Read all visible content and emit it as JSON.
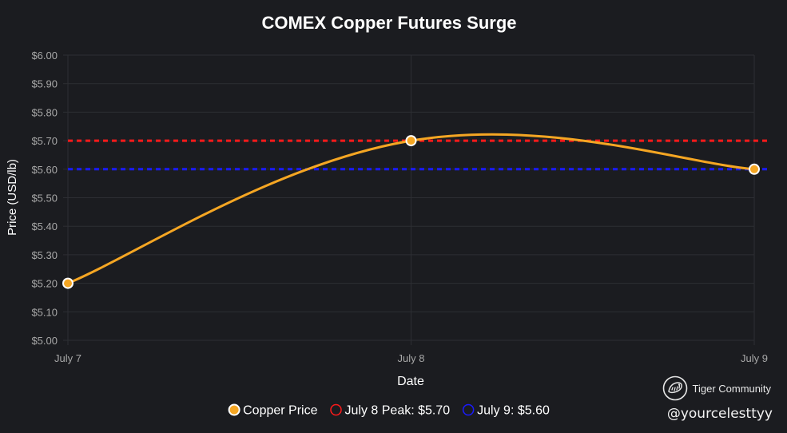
{
  "chart_data": {
    "type": "line",
    "title": "COMEX Copper Futures Surge",
    "xlabel": "Date",
    "ylabel": "Price (USD/lb)",
    "categories": [
      "July 7",
      "July 8",
      "July 9"
    ],
    "series": [
      {
        "name": "Copper Price",
        "values": [
          5.2,
          5.7,
          5.6
        ],
        "color": "#f5a623"
      }
    ],
    "reference_lines": [
      {
        "name": "July 8 Peak: $5.70",
        "value": 5.7,
        "color": "#ff1a1a"
      },
      {
        "name": "July 9: $5.60",
        "value": 5.6,
        "color": "#1a1aff"
      }
    ],
    "ylim": [
      5.0,
      6.0
    ],
    "yticks": [
      5.0,
      5.1,
      5.2,
      5.3,
      5.4,
      5.5,
      5.6,
      5.7,
      5.8,
      5.9,
      6.0
    ],
    "ytick_labels": [
      "$5.00",
      "$5.10",
      "$5.20",
      "$5.30",
      "$5.40",
      "$5.50",
      "$5.60",
      "$5.70",
      "$5.80",
      "$5.90",
      "$6.00"
    ],
    "grid": true,
    "legend_position": "bottom-center"
  },
  "watermark": {
    "brand": "Tiger Community",
    "handle": "@yourcelesttyy",
    "logo_icon": "tiger-community-logo-icon"
  },
  "colors": {
    "background": "#1b1c20",
    "grid": "#2d2e33",
    "text": "#ffffff",
    "tick_text": "#a8a8a8"
  }
}
